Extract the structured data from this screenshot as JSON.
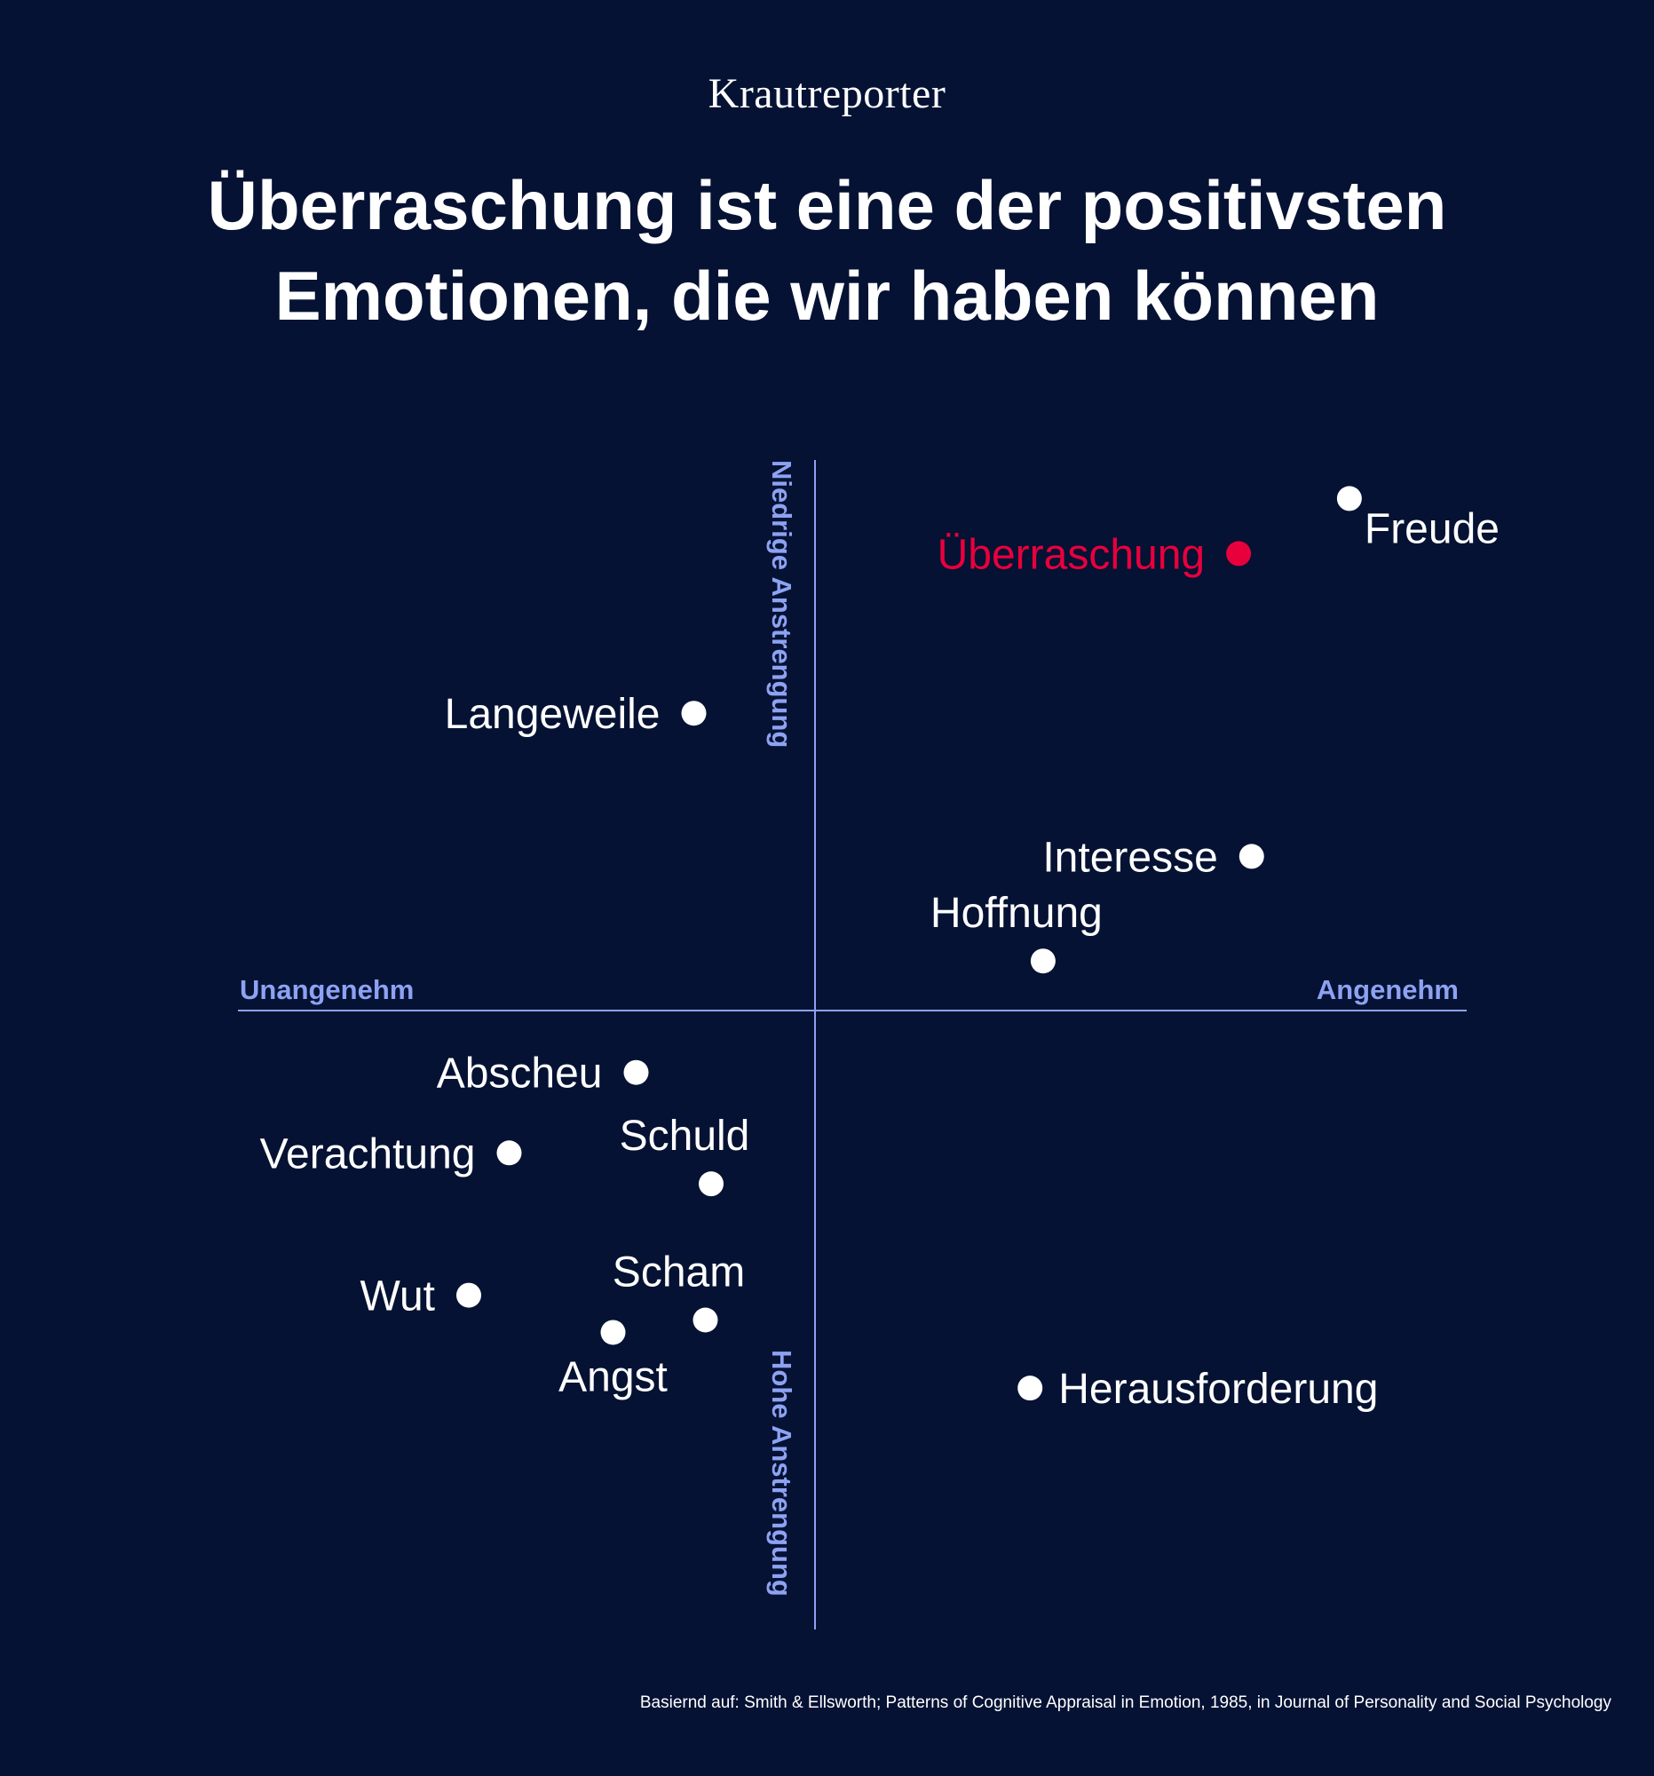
{
  "brand": "Krautreporter",
  "title_line1": "Überraschung ist eine der positivsten",
  "title_line2": "Emotionen, die wir haben können",
  "source": "Basiernd auf: Smith & Ellsworth; Patterns of Cognitive Appraisal in Emotion, 1985, in Journal of Personality and Social Psychology",
  "colors": {
    "background": "#051233",
    "axis": "#8da2f2",
    "point": "#ffffff",
    "highlight": "#e8003d"
  },
  "chart_data": {
    "type": "scatter",
    "axes": {
      "x_left_label": "Unangenehm",
      "x_right_label": "Angenehm",
      "y_top_label": "Niedrige Anstrengung",
      "y_bottom_label": "Hohe Anstrengung"
    },
    "xlim": [
      -1.0,
      1.0
    ],
    "ylim": [
      -1.0,
      1.0
    ],
    "grid": false,
    "points": [
      {
        "label": "Freude",
        "x": 0.82,
        "y": 0.93,
        "label_side": "below-right",
        "highlight": false
      },
      {
        "label": "Überraschung",
        "x": 0.65,
        "y": 0.83,
        "label_side": "left",
        "highlight": true
      },
      {
        "label": "Langeweile",
        "x": -0.21,
        "y": 0.54,
        "label_side": "left",
        "highlight": false
      },
      {
        "label": "Interesse",
        "x": 0.67,
        "y": 0.28,
        "label_side": "left",
        "highlight": false
      },
      {
        "label": "Hoffnung",
        "x": 0.35,
        "y": 0.09,
        "label_side": "above",
        "highlight": false
      },
      {
        "label": "Abscheu",
        "x": -0.31,
        "y": -0.1,
        "label_side": "left",
        "highlight": false
      },
      {
        "label": "Verachtung",
        "x": -0.53,
        "y": -0.23,
        "label_side": "left",
        "highlight": false
      },
      {
        "label": "Schuld",
        "x": -0.18,
        "y": -0.28,
        "label_side": "above",
        "highlight": false
      },
      {
        "label": "Wut",
        "x": -0.6,
        "y": -0.46,
        "label_side": "left",
        "highlight": false
      },
      {
        "label": "Scham",
        "x": -0.19,
        "y": -0.5,
        "label_side": "above",
        "highlight": false
      },
      {
        "label": "Angst",
        "x": -0.35,
        "y": -0.52,
        "label_side": "below",
        "highlight": false
      },
      {
        "label": "Herausforderung",
        "x": 0.33,
        "y": -0.61,
        "label_side": "right",
        "highlight": false
      }
    ]
  }
}
